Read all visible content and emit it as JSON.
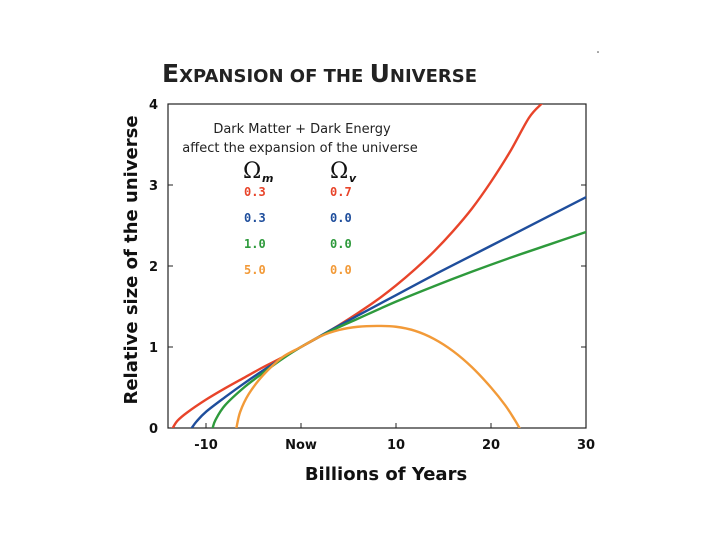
{
  "chart_data": {
    "type": "line",
    "title": "Expansion of the Universe",
    "title_parts": [
      {
        "big": "E",
        "small": "XPANSION OF THE "
      },
      {
        "big": "U",
        "small": "NIVERSE"
      }
    ],
    "xlabel": "Billions of Years",
    "ylabel": "Relative size of the universe",
    "xlim": [
      -14,
      30
    ],
    "ylim": [
      0,
      4
    ],
    "xticks": [
      {
        "value": -10,
        "label": "-10"
      },
      {
        "value": 0,
        "label": "Now"
      },
      {
        "value": 10,
        "label": "10"
      },
      {
        "value": 20,
        "label": "20"
      },
      {
        "value": 30,
        "label": "30"
      }
    ],
    "yticks": [
      {
        "value": 0,
        "label": "0"
      },
      {
        "value": 1,
        "label": "1"
      },
      {
        "value": 2,
        "label": "2"
      },
      {
        "value": 3,
        "label": "3"
      },
      {
        "value": 4,
        "label": "4"
      }
    ],
    "annotation": [
      "Dark Matter + Dark Energy",
      "affect the expansion of the universe"
    ],
    "legend_headers": {
      "omega_symbol": "Ω",
      "m_sub": "m",
      "v_sub": "v"
    },
    "series": [
      {
        "name": "Ωm 0.3 Ωv 0.7",
        "omega_m": "0.3",
        "omega_v": "0.7",
        "color": "#e8442a",
        "x": [
          -13.5,
          -13,
          -12,
          -10,
          -8,
          -6,
          -4,
          -2,
          0,
          2,
          4,
          6,
          8,
          10,
          12,
          14,
          16,
          18,
          20,
          22,
          24,
          25.3
        ],
        "y": [
          0.0,
          0.09,
          0.19,
          0.35,
          0.49,
          0.62,
          0.75,
          0.87,
          1.0,
          1.13,
          1.27,
          1.42,
          1.58,
          1.76,
          1.96,
          2.18,
          2.43,
          2.71,
          3.04,
          3.41,
          3.83,
          4.0
        ]
      },
      {
        "name": "Ωm 0.3 Ωv 0.0",
        "omega_m": "0.3",
        "omega_v": "0.0",
        "color": "#1f4e9c",
        "x": [
          -11.5,
          -11,
          -10,
          -8,
          -6,
          -4,
          -2,
          0,
          3,
          6,
          10,
          14,
          18,
          22,
          26,
          30
        ],
        "y": [
          0.0,
          0.08,
          0.2,
          0.38,
          0.55,
          0.71,
          0.86,
          1.0,
          1.2,
          1.39,
          1.64,
          1.89,
          2.13,
          2.37,
          2.61,
          2.85
        ]
      },
      {
        "name": "Ωm 1.0 Ωv 0.0",
        "omega_m": "1.0",
        "omega_v": "0.0",
        "color": "#2e9a3c",
        "x": [
          -9.3,
          -9,
          -8,
          -6,
          -4,
          -2,
          0,
          3,
          6,
          10,
          14,
          18,
          22,
          26,
          30
        ],
        "y": [
          0.0,
          0.1,
          0.28,
          0.5,
          0.68,
          0.85,
          1.0,
          1.19,
          1.35,
          1.56,
          1.75,
          1.93,
          2.1,
          2.26,
          2.42
        ]
      },
      {
        "name": "Ωm 5.0 Ωv 0.0",
        "omega_m": "5.0",
        "omega_v": "0.0",
        "color": "#f29a38",
        "x": [
          -6.8,
          -6.4,
          -5.5,
          -4,
          -2,
          0,
          2,
          4,
          6,
          8,
          10,
          12,
          14,
          16,
          18,
          20,
          21.5,
          22.5,
          23
        ],
        "y": [
          0.0,
          0.2,
          0.42,
          0.65,
          0.87,
          1.0,
          1.13,
          1.21,
          1.25,
          1.26,
          1.25,
          1.2,
          1.1,
          0.95,
          0.75,
          0.5,
          0.28,
          0.1,
          0.0
        ]
      }
    ]
  }
}
